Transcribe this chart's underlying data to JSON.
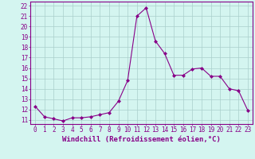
{
  "x": [
    0,
    1,
    2,
    3,
    4,
    5,
    6,
    7,
    8,
    9,
    10,
    11,
    12,
    13,
    14,
    15,
    16,
    17,
    18,
    19,
    20,
    21,
    22,
    23
  ],
  "y": [
    12.3,
    11.3,
    11.1,
    10.9,
    11.2,
    11.2,
    11.3,
    11.5,
    11.7,
    12.8,
    14.8,
    21.0,
    21.8,
    18.6,
    17.4,
    15.3,
    15.3,
    15.9,
    16.0,
    15.2,
    15.2,
    14.0,
    13.8,
    11.9
  ],
  "line_color": "#880088",
  "marker": "D",
  "marker_size": 2.0,
  "background_color": "#d4f5f0",
  "grid_color": "#aacfcb",
  "xlabel": "Windchill (Refroidissement éolien,°C)",
  "ylabel_ticks": [
    11,
    12,
    13,
    14,
    15,
    16,
    17,
    18,
    19,
    20,
    21,
    22
  ],
  "xlim": [
    -0.5,
    23.5
  ],
  "ylim": [
    10.6,
    22.4
  ],
  "xticks": [
    0,
    1,
    2,
    3,
    4,
    5,
    6,
    7,
    8,
    9,
    10,
    11,
    12,
    13,
    14,
    15,
    16,
    17,
    18,
    19,
    20,
    21,
    22,
    23
  ],
  "label_fontsize": 6.5,
  "tick_fontsize": 5.5
}
